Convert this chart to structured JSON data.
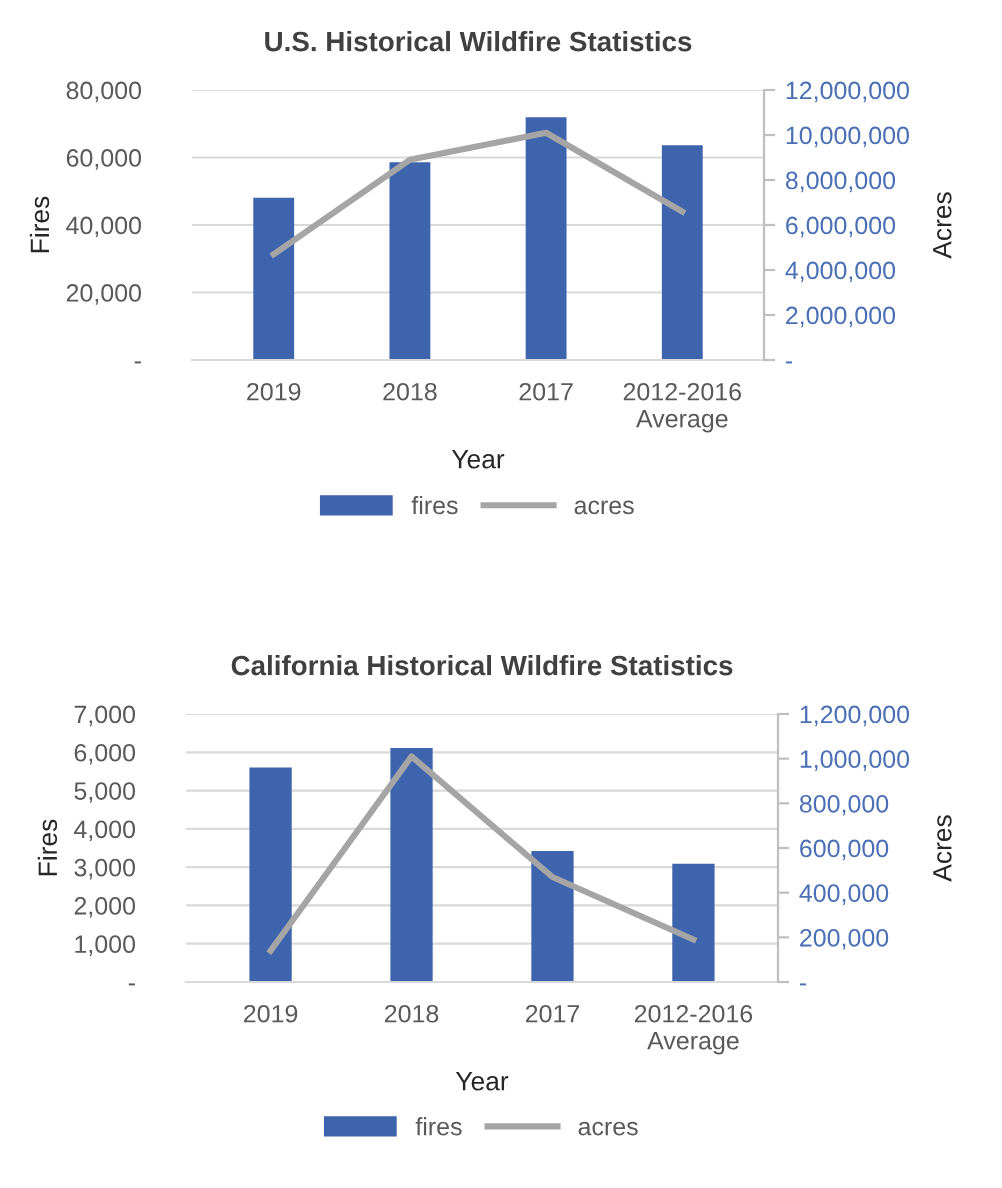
{
  "chart_data": [
    {
      "type": "bar",
      "title": "U.S. Historical Wildfire Statistics",
      "xlabel": "Year",
      "ylabel": "Fires",
      "y2label": "Acres",
      "categories": [
        "2019",
        "2018",
        "2017",
        "2012-2016\nAverage"
      ],
      "series": [
        {
          "name": "fires",
          "color": "#3d64ad",
          "values": [
            48100,
            58600,
            71900,
            63600
          ]
        },
        {
          "name": "acres",
          "type": "line",
          "axis": "y2",
          "color": "#a5a5a5",
          "values": [
            4700000,
            8900000,
            10100000,
            6600000
          ]
        }
      ],
      "ylim": [
        0,
        80000
      ],
      "yticks": [
        {
          "value": 0,
          "label": "-"
        },
        {
          "value": 20000,
          "label": "20,000"
        },
        {
          "value": 40000,
          "label": "40,000"
        },
        {
          "value": 60000,
          "label": "60,000"
        },
        {
          "value": 80000,
          "label": "80,000"
        }
      ],
      "y2lim": [
        0,
        12000000
      ],
      "y2ticks": [
        {
          "value": 0,
          "label": "-"
        },
        {
          "value": 2000000,
          "label": "2,000,000"
        },
        {
          "value": 4000000,
          "label": "4,000,000"
        },
        {
          "value": 6000000,
          "label": "6,000,000"
        },
        {
          "value": 8000000,
          "label": "8,000,000"
        },
        {
          "value": 10000000,
          "label": "10,000,000"
        },
        {
          "value": 12000000,
          "label": "12,000,000"
        }
      ],
      "grid": "y",
      "legend": "bottom",
      "marker": "none"
    },
    {
      "type": "bar",
      "title": "California Historical Wildfire Statistics",
      "xlabel": "Year",
      "ylabel": "Fires",
      "y2label": "Acres",
      "categories": [
        "2019",
        "2018",
        "2017",
        "2012-2016\nAverage"
      ],
      "series": [
        {
          "name": "fires",
          "color": "#3d64ad",
          "values": [
            5600,
            6110,
            3420,
            3090
          ]
        },
        {
          "name": "acres",
          "type": "line",
          "axis": "y2",
          "color": "#a5a5a5",
          "values": [
            140000,
            1010000,
            470000,
            190000
          ]
        }
      ],
      "ylim": [
        0,
        7000
      ],
      "yticks": [
        {
          "value": 0,
          "label": "-"
        },
        {
          "value": 1000,
          "label": "1,000"
        },
        {
          "value": 2000,
          "label": "2,000"
        },
        {
          "value": 3000,
          "label": "3,000"
        },
        {
          "value": 4000,
          "label": "4,000"
        },
        {
          "value": 5000,
          "label": "5,000"
        },
        {
          "value": 6000,
          "label": "6,000"
        },
        {
          "value": 7000,
          "label": "7,000"
        }
      ],
      "y2lim": [
        0,
        1200000
      ],
      "y2ticks": [
        {
          "value": 0,
          "label": "-"
        },
        {
          "value": 200000,
          "label": "200,000"
        },
        {
          "value": 400000,
          "label": "400,000"
        },
        {
          "value": 600000,
          "label": "600,000"
        },
        {
          "value": 800000,
          "label": "800,000"
        },
        {
          "value": 1000000,
          "label": "1,000,000"
        },
        {
          "value": 1200000,
          "label": "1,200,000"
        }
      ],
      "grid": "y",
      "legend": "bottom",
      "marker": "none"
    }
  ]
}
